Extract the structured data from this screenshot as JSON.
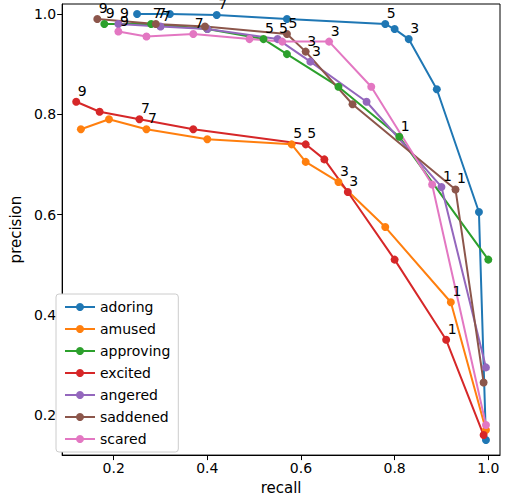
{
  "chart_data": {
    "type": "line",
    "x_label": "recall",
    "y_label": "precision",
    "xlim": [
      0.09,
      1.025
    ],
    "ylim": [
      0.12,
      1.02
    ],
    "xticks": [
      0.2,
      0.4,
      0.6,
      0.8,
      {
        "value": 1,
        "label": "1.0"
      }
    ],
    "yticks": [
      0.2,
      0.4,
      0.6,
      0.8,
      {
        "value": 1,
        "label": "1.0"
      }
    ],
    "grid": false,
    "legend": "lower left",
    "marker": "circle",
    "series": [
      {
        "name": "adoring",
        "color": "#1f77b4",
        "x": [
          0.25,
          0.32,
          0.42,
          0.57,
          0.78,
          0.8,
          0.83,
          0.89,
          0.98,
          0.995
        ],
        "values": [
          1.0,
          1.0,
          0.998,
          0.99,
          0.98,
          0.97,
          0.95,
          0.85,
          0.605,
          0.15
        ],
        "point_labels": [
          null,
          null,
          "7",
          null,
          "5",
          null,
          "3",
          null,
          null,
          null
        ]
      },
      {
        "name": "amused",
        "color": "#ff7f0e",
        "x": [
          0.13,
          0.19,
          0.27,
          0.4,
          0.58,
          0.61,
          0.68,
          0.78,
          0.92,
          0.995
        ],
        "values": [
          0.77,
          0.79,
          0.77,
          0.75,
          0.74,
          0.705,
          0.665,
          0.575,
          0.425,
          0.17
        ],
        "point_labels": [
          null,
          null,
          "7",
          null,
          "5",
          null,
          "3",
          null,
          "1",
          null
        ]
      },
      {
        "name": "approving",
        "color": "#2ca02c",
        "x": [
          0.18,
          0.28,
          0.4,
          0.52,
          0.57,
          0.68,
          0.81,
          1.0
        ],
        "values": [
          0.98,
          0.98,
          0.97,
          0.95,
          0.92,
          0.855,
          0.755,
          0.51
        ],
        "point_labels": [
          "9",
          "7",
          null,
          "5",
          null,
          null,
          "1",
          null
        ]
      },
      {
        "name": "excited",
        "color": "#d62728",
        "x": [
          0.12,
          0.17,
          0.255,
          0.37,
          0.61,
          0.65,
          0.7,
          0.8,
          0.91,
          0.99
        ],
        "values": [
          0.825,
          0.805,
          0.79,
          0.77,
          0.74,
          0.71,
          0.645,
          0.51,
          0.35,
          0.16
        ],
        "point_labels": [
          "9",
          null,
          "7",
          null,
          "5",
          null,
          "3",
          null,
          "1",
          null
        ]
      },
      {
        "name": "angered",
        "color": "#9467bd",
        "x": [
          0.21,
          0.3,
          0.4,
          0.55,
          0.62,
          0.74,
          0.9,
          0.995
        ],
        "values": [
          0.98,
          0.975,
          0.97,
          0.95,
          0.905,
          0.825,
          0.655,
          0.295
        ],
        "point_labels": [
          "9",
          "7",
          null,
          "5",
          "3",
          null,
          "1",
          null
        ]
      },
      {
        "name": "saddened",
        "color": "#8c564b",
        "x": [
          0.165,
          0.29,
          0.395,
          0.57,
          0.61,
          0.71,
          0.93,
          0.99
        ],
        "values": [
          0.99,
          0.98,
          0.975,
          0.96,
          0.925,
          0.82,
          0.65,
          0.265
        ],
        "point_labels": [
          "9",
          "7",
          null,
          "5",
          "3",
          null,
          "1",
          null
        ]
      },
      {
        "name": "scared",
        "color": "#e377c2",
        "x": [
          0.21,
          0.27,
          0.37,
          0.49,
          0.56,
          0.66,
          0.75,
          0.88,
          0.995
        ],
        "values": [
          0.965,
          0.955,
          0.96,
          0.95,
          0.945,
          0.945,
          0.855,
          0.66,
          0.18
        ],
        "point_labels": [
          "9",
          null,
          "7",
          null,
          null,
          "3",
          null,
          null,
          null
        ]
      }
    ]
  }
}
